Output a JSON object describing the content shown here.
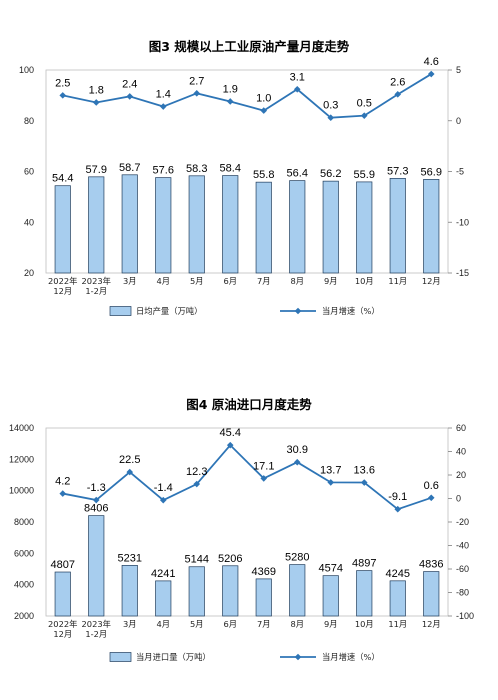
{
  "chart_data": [
    {
      "type": "bar+line",
      "title": "图3  规模以上工业原油产量月度走势",
      "categories": [
        [
          "2022年",
          "12月"
        ],
        [
          "2023年",
          "1-2月"
        ],
        [
          "3月"
        ],
        [
          "4月"
        ],
        [
          "5月"
        ],
        [
          "6月"
        ],
        [
          "7月"
        ],
        [
          "8月"
        ],
        [
          "9月"
        ],
        [
          "10月"
        ],
        [
          "11月"
        ],
        [
          "12月"
        ]
      ],
      "series": [
        {
          "name": "日均产量（万吨）",
          "type": "bar",
          "axis": "left",
          "values": [
            54.4,
            57.9,
            58.7,
            57.6,
            58.3,
            58.4,
            55.8,
            56.4,
            56.2,
            55.9,
            57.3,
            56.9
          ]
        },
        {
          "name": "当月增速（%）",
          "type": "line",
          "axis": "right",
          "values": [
            2.5,
            1.8,
            2.4,
            1.4,
            2.7,
            1.9,
            1.0,
            3.1,
            0.3,
            0.5,
            2.6,
            4.6
          ]
        }
      ],
      "value_labels_bar": [
        "54.4",
        "57.9",
        "58.7",
        "57.6",
        "58.3",
        "58.4",
        "55.8",
        "56.4",
        "56.2",
        "55.9",
        "57.3",
        "56.9"
      ],
      "value_labels_line": [
        "2.5",
        "1.8",
        "2.4",
        "1.4",
        "2.7",
        "1.9",
        "1.0",
        "3.1",
        "0.3",
        "0.5",
        "2.6",
        "4.6"
      ],
      "left_axis": {
        "min": 20,
        "max": 100,
        "ticks": [
          "20",
          "40",
          "60",
          "80",
          "100"
        ]
      },
      "right_axis": {
        "min": -15,
        "max": 5,
        "ticks": [
          "-15",
          "-10",
          "-5",
          "0",
          "5"
        ]
      },
      "legend_position": "bottom",
      "colors": {
        "bar_fill": "#a7cdee",
        "bar_stroke": "#1f3c5c",
        "line": "#2e75b6"
      }
    },
    {
      "type": "bar+line",
      "title": "图4  原油进口月度走势",
      "categories": [
        [
          "2022年",
          "12月"
        ],
        [
          "2023年",
          "1-2月"
        ],
        [
          "3月"
        ],
        [
          "4月"
        ],
        [
          "5月"
        ],
        [
          "6月"
        ],
        [
          "7月"
        ],
        [
          "8月"
        ],
        [
          "9月"
        ],
        [
          "10月"
        ],
        [
          "11月"
        ],
        [
          "12月"
        ]
      ],
      "series": [
        {
          "name": "当月进口量（万吨）",
          "type": "bar",
          "axis": "left",
          "values": [
            4807,
            8406,
            5231,
            4241,
            5144,
            5206,
            4369,
            5280,
            4574,
            4897,
            4245,
            4836
          ]
        },
        {
          "name": "当月增速（%）",
          "type": "line",
          "axis": "right",
          "values": [
            4.2,
            -1.3,
            22.5,
            -1.4,
            12.3,
            45.4,
            17.1,
            30.9,
            13.7,
            13.6,
            -9.1,
            0.6
          ]
        }
      ],
      "value_labels_bar": [
        "4807",
        "8406",
        "5231",
        "4241",
        "5144",
        "5206",
        "4369",
        "5280",
        "4574",
        "4897",
        "4245",
        "4836"
      ],
      "value_labels_line": [
        "4.2",
        "-1.3",
        "22.5",
        "-1.4",
        "12.3",
        "45.4",
        "17.1",
        "30.9",
        "13.7",
        "13.6",
        "-9.1",
        "0.6"
      ],
      "left_axis": {
        "min": 2000,
        "max": 14000,
        "ticks": [
          "2000",
          "4000",
          "6000",
          "8000",
          "10000",
          "12000",
          "14000"
        ]
      },
      "right_axis": {
        "min": -100,
        "max": 60,
        "ticks": [
          "-100",
          "-80",
          "-60",
          "-40",
          "-20",
          "0",
          "20",
          "40",
          "60"
        ]
      },
      "legend_position": "bottom",
      "colors": {
        "bar_fill": "#a7cdee",
        "bar_stroke": "#1f3c5c",
        "line": "#2e75b6"
      }
    }
  ]
}
